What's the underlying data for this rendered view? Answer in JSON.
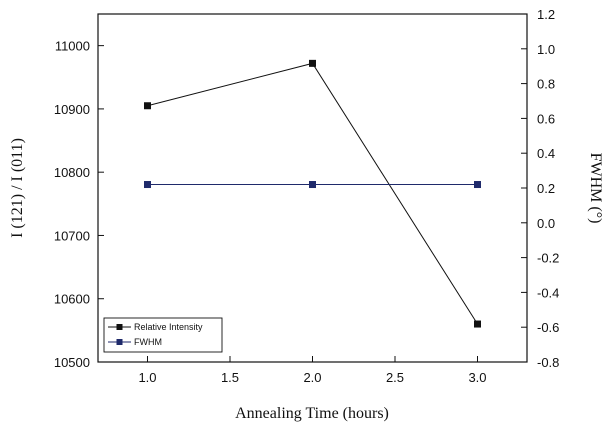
{
  "chart_data": {
    "type": "line",
    "title": "",
    "xlabel": "Annealing Time (hours)",
    "ylabel_left": "I (121) / I (011)",
    "ylabel_right": "FWHM (°)",
    "xlim": [
      0.7,
      3.3
    ],
    "ylim_left": [
      10500,
      11050
    ],
    "ylim_right": [
      -0.8,
      1.2
    ],
    "x_ticks": [
      "1.0",
      "1.5",
      "2.0",
      "2.5",
      "3.0"
    ],
    "y_left_ticks": [
      "10500",
      "10600",
      "10700",
      "10800",
      "10900",
      "11000"
    ],
    "y_right_ticks": [
      "-0.8",
      "-0.6",
      "-0.4",
      "-0.2",
      "0.0",
      "0.2",
      "0.4",
      "0.6",
      "0.8",
      "1.0",
      "1.2"
    ],
    "grid": false,
    "legend_position": "bottom-left",
    "series": [
      {
        "name": "Relative Intensity",
        "axis": "left",
        "color": "#111111",
        "x": [
          1.0,
          2.0,
          3.0
        ],
        "y": [
          10905,
          10972,
          10560
        ]
      },
      {
        "name": "FWHM",
        "axis": "right",
        "color": "#1f2a6b",
        "x": [
          1.0,
          2.0,
          3.0
        ],
        "y": [
          0.22,
          0.22,
          0.22
        ]
      }
    ]
  }
}
